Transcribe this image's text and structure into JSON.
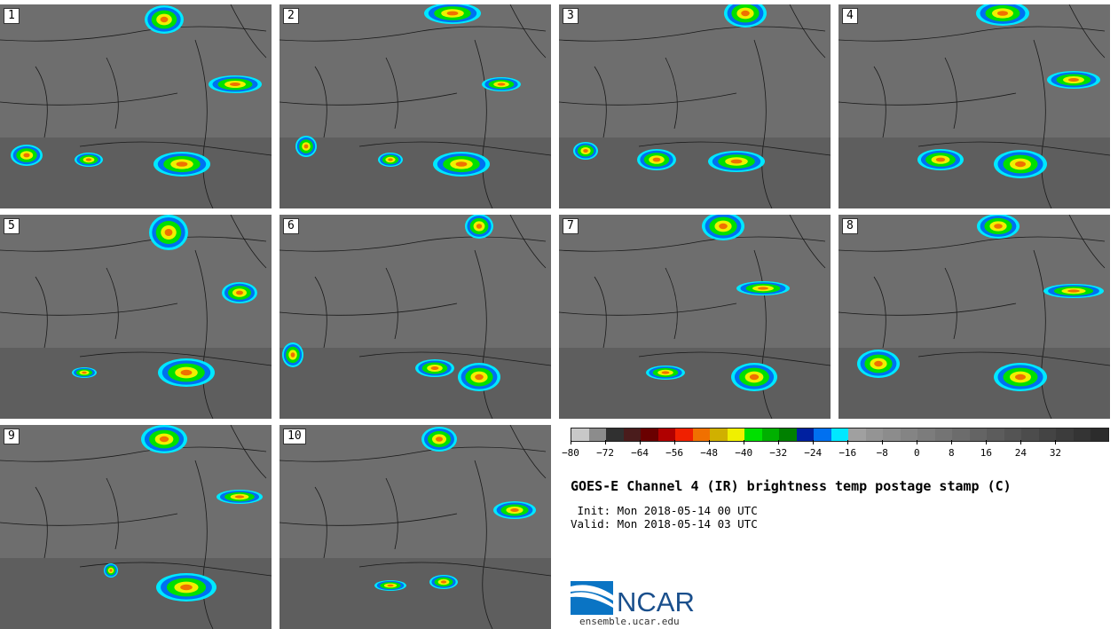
{
  "panels": [
    {
      "label": "1"
    },
    {
      "label": "2"
    },
    {
      "label": "3"
    },
    {
      "label": "4"
    },
    {
      "label": "5"
    },
    {
      "label": "6"
    },
    {
      "label": "7"
    },
    {
      "label": "8"
    },
    {
      "label": "9"
    },
    {
      "label": "10"
    }
  ],
  "colorbar": {
    "colors": [
      "#c8c8c8",
      "#8c8c8c",
      "#303030",
      "#4a1c1c",
      "#6a0000",
      "#b00000",
      "#f02000",
      "#f07000",
      "#d0b000",
      "#f0f000",
      "#00e000",
      "#00b000",
      "#008000",
      "#0020a0",
      "#0070f0",
      "#00e8ff",
      "#a0a0a0",
      "#949494",
      "#8c8c8c",
      "#848484",
      "#7c7c7c",
      "#747474",
      "#6c6c6c",
      "#646464",
      "#5c5c5c",
      "#545454",
      "#4c4c4c",
      "#444444",
      "#3c3c3c",
      "#343434",
      "#2c2c2c"
    ],
    "tick_labels": [
      "−80",
      "−72",
      "−64",
      "−56",
      "−48",
      "−40",
      "−32",
      "−24",
      "−16",
      "−8",
      "0",
      "8",
      "16",
      "24",
      "32"
    ],
    "min": -80,
    "max": 44,
    "step": 4
  },
  "title": "GOES-E Channel 4 (IR) brightness temp postage stamp (C)",
  "init": " Init: Mon 2018-05-14 00 UTC",
  "valid": "Valid: Mon 2018-05-14 03 UTC",
  "logo_text": "NCAR",
  "site": "ensemble.ucar.edu",
  "colors": {
    "background": "#6e6e6e",
    "cold": "#f02000",
    "warm": "#00e000"
  }
}
